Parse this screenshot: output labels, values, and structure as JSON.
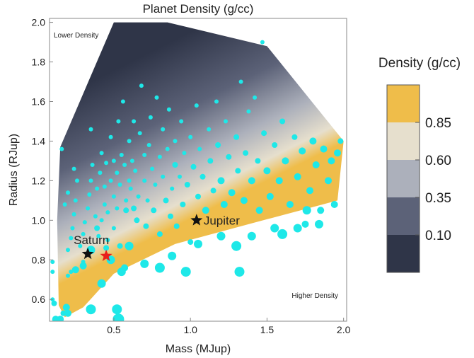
{
  "chart_data": {
    "type": "scatter",
    "title": "Planet Density (g/cc)",
    "xlabel": "Mass (MJup)",
    "ylabel": "Radius (RJup)",
    "xlim": [
      0.08,
      2.02
    ],
    "ylim": [
      0.49,
      2.02
    ],
    "xticks": [
      "0.5",
      "1.0",
      "1.5",
      "2.0"
    ],
    "xtick_values": [
      0.5,
      1.0,
      1.5,
      2.0
    ],
    "yticks": [
      "0.6",
      "0.8",
      "1.0",
      "1.2",
      "1.4",
      "1.6",
      "1.8",
      "2.0"
    ],
    "ytick_values": [
      0.6,
      0.8,
      1.0,
      1.2,
      1.4,
      1.6,
      1.8,
      2.0
    ],
    "grid": false,
    "annotations": {
      "lower": "Lower Density",
      "higher": "Higher Density"
    },
    "named_points": [
      {
        "label": "Saturn",
        "x": 0.33,
        "y": 0.83,
        "color": "#111111"
      },
      {
        "label": "",
        "x": 0.45,
        "y": 0.82,
        "color": "#e8201c"
      },
      {
        "label": "Jupiter",
        "x": 1.04,
        "y": 1.0,
        "color": "#111111"
      }
    ],
    "density_region": {
      "hull": [
        [
          0.18,
          0.51
        ],
        [
          0.14,
          0.57
        ],
        [
          0.13,
          1.0
        ],
        [
          0.15,
          1.37
        ],
        [
          0.5,
          2.0
        ],
        [
          0.85,
          2.0
        ],
        [
          1.5,
          1.88
        ],
        [
          2.0,
          1.4
        ],
        [
          1.96,
          1.1
        ],
        [
          1.33,
          0.97
        ],
        [
          0.9,
          0.88
        ],
        [
          0.5,
          0.73
        ],
        [
          0.3,
          0.56
        ]
      ]
    },
    "legend": {
      "title": "Density (g/cc)",
      "entries": [
        "0.85",
        "0.60",
        "0.35",
        "0.10"
      ],
      "colors": [
        "#efbd4a",
        "#e6dfcd",
        "#acb0bb",
        "#5c6278",
        "#2f3548"
      ]
    },
    "point_color": "#1ee8e8",
    "points": [
      [
        0.1,
        0.6,
        3
      ],
      [
        0.1,
        0.79,
        3
      ],
      [
        0.1,
        0.74,
        3
      ],
      [
        0.11,
        0.58,
        4
      ],
      [
        0.12,
        0.5,
        5
      ],
      [
        0.15,
        0.5,
        5
      ],
      [
        0.17,
        0.53,
        4
      ],
      [
        0.19,
        0.56,
        5
      ],
      [
        0.2,
        0.72,
        3
      ],
      [
        0.22,
        0.74,
        3
      ],
      [
        0.2,
        0.85,
        3
      ],
      [
        0.22,
        0.91,
        3
      ],
      [
        0.23,
        0.96,
        3
      ],
      [
        0.25,
        1.1,
        3
      ],
      [
        0.24,
        1.03,
        3
      ],
      [
        0.26,
        1.2,
        3
      ],
      [
        0.24,
        1.26,
        3
      ],
      [
        0.2,
        1.14,
        3
      ],
      [
        0.18,
        1.08,
        3
      ],
      [
        0.16,
        1.36,
        3
      ],
      [
        0.28,
        0.87,
        3
      ],
      [
        0.3,
        0.79,
        3
      ],
      [
        0.3,
        0.93,
        3
      ],
      [
        0.31,
        0.99,
        3
      ],
      [
        0.33,
        1.06,
        3
      ],
      [
        0.34,
        1.13,
        3
      ],
      [
        0.35,
        1.2,
        3
      ],
      [
        0.36,
        1.28,
        3
      ],
      [
        0.35,
        1.46,
        3
      ],
      [
        0.38,
        1.02,
        3
      ],
      [
        0.39,
        1.16,
        3
      ],
      [
        0.4,
        0.92,
        3
      ],
      [
        0.41,
        1.24,
        3
      ],
      [
        0.42,
        1.0,
        3
      ],
      [
        0.42,
        1.34,
        3
      ],
      [
        0.44,
        1.08,
        3
      ],
      [
        0.44,
        1.17,
        3
      ],
      [
        0.45,
        1.29,
        3
      ],
      [
        0.46,
        1.04,
        3
      ],
      [
        0.46,
        0.9,
        3
      ],
      [
        0.48,
        1.2,
        3
      ],
      [
        0.48,
        1.42,
        3
      ],
      [
        0.5,
        1.12,
        3
      ],
      [
        0.5,
        1.3,
        3
      ],
      [
        0.5,
        0.96,
        3
      ],
      [
        0.52,
        1.24,
        3
      ],
      [
        0.52,
        1.06,
        3
      ],
      [
        0.53,
        1.5,
        3
      ],
      [
        0.54,
        1.18,
        3
      ],
      [
        0.54,
        0.87,
        4
      ],
      [
        0.55,
        1.33,
        3
      ],
      [
        0.56,
        1.6,
        3
      ],
      [
        0.57,
        1.28,
        3
      ],
      [
        0.58,
        1.1,
        3
      ],
      [
        0.58,
        1.05,
        4
      ],
      [
        0.6,
        1.2,
        3
      ],
      [
        0.6,
        1.4,
        3
      ],
      [
        0.61,
        1.16,
        3
      ],
      [
        0.63,
        1.06,
        4
      ],
      [
        0.62,
        1.3,
        3
      ],
      [
        0.63,
        1.5,
        3
      ],
      [
        0.64,
        1.25,
        3
      ],
      [
        0.65,
        1.0,
        4
      ],
      [
        0.66,
        1.12,
        3
      ],
      [
        0.67,
        1.44,
        3
      ],
      [
        0.68,
        1.68,
        3
      ],
      [
        0.7,
        1.33,
        3
      ],
      [
        0.7,
        1.2,
        3
      ],
      [
        0.71,
        0.97,
        4
      ],
      [
        0.72,
        1.1,
        3
      ],
      [
        0.73,
        1.38,
        3
      ],
      [
        0.74,
        1.52,
        3
      ],
      [
        0.75,
        1.26,
        3
      ],
      [
        0.76,
        1.05,
        4
      ],
      [
        0.77,
        1.18,
        3
      ],
      [
        0.78,
        1.62,
        3
      ],
      [
        0.8,
        1.32,
        3
      ],
      [
        0.8,
        0.93,
        4
      ],
      [
        0.82,
        1.22,
        3
      ],
      [
        0.82,
        1.46,
        3
      ],
      [
        0.84,
        1.1,
        4
      ],
      [
        0.85,
        1.36,
        3
      ],
      [
        0.86,
        1.56,
        3
      ],
      [
        0.87,
        1.02,
        4
      ],
      [
        0.88,
        1.16,
        3
      ],
      [
        0.9,
        1.28,
        4
      ],
      [
        0.9,
        1.4,
        3
      ],
      [
        0.91,
        0.97,
        4
      ],
      [
        0.93,
        1.22,
        3
      ],
      [
        0.94,
        1.5,
        3
      ],
      [
        0.95,
        1.08,
        4
      ],
      [
        0.96,
        1.34,
        3
      ],
      [
        0.98,
        1.18,
        4
      ],
      [
        1.0,
        1.42,
        3
      ],
      [
        1.0,
        0.89,
        4
      ],
      [
        1.02,
        1.27,
        4
      ],
      [
        1.04,
        1.58,
        3
      ],
      [
        1.05,
        1.12,
        4
      ],
      [
        1.06,
        1.36,
        3
      ],
      [
        1.08,
        1.22,
        4
      ],
      [
        1.1,
        1.05,
        5
      ],
      [
        1.12,
        1.46,
        3
      ],
      [
        1.13,
        1.3,
        4
      ],
      [
        1.15,
        1.15,
        4
      ],
      [
        1.17,
        1.6,
        3
      ],
      [
        1.18,
        1.38,
        4
      ],
      [
        1.2,
        1.2,
        5
      ],
      [
        1.22,
        1.08,
        5
      ],
      [
        1.23,
        1.5,
        3
      ],
      [
        1.25,
        1.32,
        4
      ],
      [
        1.27,
        1.14,
        5
      ],
      [
        1.3,
        1.42,
        4
      ],
      [
        1.31,
        1.25,
        4
      ],
      [
        1.33,
        1.7,
        3
      ],
      [
        1.35,
        1.1,
        5
      ],
      [
        1.36,
        1.34,
        4
      ],
      [
        1.38,
        1.55,
        3
      ],
      [
        1.4,
        1.2,
        5
      ],
      [
        1.42,
        1.62,
        3
      ],
      [
        1.44,
        1.3,
        4
      ],
      [
        1.45,
        1.05,
        5
      ],
      [
        1.47,
        1.9,
        3
      ],
      [
        1.48,
        1.44,
        4
      ],
      [
        1.5,
        1.25,
        5
      ],
      [
        1.52,
        1.12,
        5
      ],
      [
        1.55,
        1.38,
        4
      ],
      [
        1.58,
        1.2,
        5
      ],
      [
        1.6,
        1.5,
        4
      ],
      [
        1.62,
        1.3,
        5
      ],
      [
        1.65,
        1.08,
        5
      ],
      [
        1.68,
        1.42,
        4
      ],
      [
        1.7,
        1.22,
        5
      ],
      [
        1.73,
        1.35,
        5
      ],
      [
        1.75,
        0.98,
        5
      ],
      [
        1.78,
        1.15,
        5
      ],
      [
        1.8,
        1.4,
        5
      ],
      [
        1.82,
        1.28,
        5
      ],
      [
        1.85,
        1.05,
        5
      ],
      [
        1.87,
        1.36,
        5
      ],
      [
        1.9,
        1.2,
        5
      ],
      [
        1.92,
        1.3,
        5
      ],
      [
        1.94,
        1.08,
        5
      ],
      [
        1.96,
        1.34,
        5
      ],
      [
        1.98,
        1.4,
        4
      ],
      [
        1.76,
        1.05,
        6
      ],
      [
        1.7,
        0.96,
        6
      ],
      [
        1.55,
        0.96,
        6
      ],
      [
        1.4,
        0.92,
        6
      ],
      [
        1.2,
        0.92,
        6
      ],
      [
        1.05,
        0.88,
        6
      ],
      [
        0.88,
        0.82,
        6
      ],
      [
        0.7,
        0.78,
        6
      ],
      [
        0.3,
        0.77,
        5
      ],
      [
        0.25,
        0.75,
        5
      ],
      [
        0.35,
        0.85,
        6
      ],
      [
        0.42,
        0.68,
        6
      ],
      [
        0.48,
        0.8,
        6
      ],
      [
        0.55,
        0.74,
        6
      ],
      [
        0.6,
        0.87,
        6
      ],
      [
        0.8,
        0.76,
        7
      ],
      [
        0.97,
        0.74,
        7
      ],
      [
        1.32,
        0.74,
        7
      ],
      [
        1.3,
        0.87,
        7
      ],
      [
        1.6,
        0.93,
        7
      ],
      [
        0.52,
        0.55,
        7
      ],
      [
        0.53,
        0.5,
        8
      ],
      [
        0.35,
        0.55,
        7
      ],
      [
        0.2,
        0.53,
        5
      ],
      [
        0.57,
        0.76,
        5
      ],
      [
        0.39,
        0.96,
        4
      ],
      [
        0.45,
        0.86,
        4
      ],
      [
        1.84,
        0.98,
        6
      ]
    ]
  }
}
